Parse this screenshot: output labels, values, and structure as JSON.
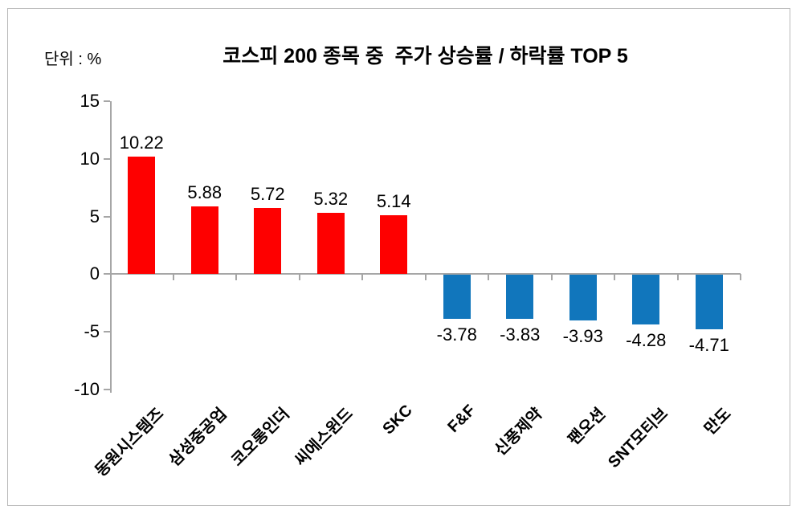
{
  "unit_label": "단위 : %",
  "title": "코스피 200 종목 중  주가 상승률 / 하락률 TOP 5",
  "colors": {
    "positive": "#fe0000",
    "negative": "#1176bc",
    "axis": "#a6a6a6",
    "frame_border": "#b9b9b9",
    "text": "#000000"
  },
  "chart_data": {
    "type": "bar",
    "title": "코스피 200 종목 중  주가 상승률 / 하락률 TOP 5",
    "unit": "단위 : %",
    "categories": [
      "동원시스템즈",
      "삼성중공업",
      "코오롱인더",
      "씨에스윈드",
      "SKC",
      "F&F",
      "신풍제약",
      "팬오션",
      "SNT모티브",
      "만도"
    ],
    "values": [
      10.22,
      5.88,
      5.72,
      5.32,
      5.14,
      -3.78,
      -3.83,
      -3.93,
      -4.28,
      -4.71
    ],
    "value_labels": [
      "10.22",
      "5.88",
      "5.72",
      "5.32",
      "5.14",
      "-3.78",
      "-3.83",
      "-3.93",
      "-4.28",
      "-4.71"
    ],
    "series_rule": "positive values red, negative values blue",
    "xlabel": "",
    "ylabel": "",
    "yticks": [
      15,
      10,
      5,
      0,
      -5,
      -10
    ],
    "ylim": [
      -10,
      15
    ],
    "grid": false,
    "legend": null
  }
}
